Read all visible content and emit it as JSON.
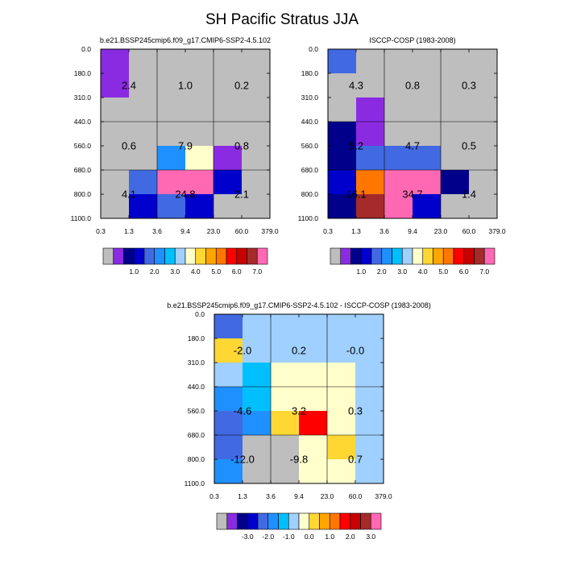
{
  "title": "SH Pacific Stratus JJA",
  "x_tick_labels": [
    "0.3",
    "1.3",
    "3.6",
    "9.4",
    "23.0",
    "60.0",
    "379.0"
  ],
  "y_tick_labels": [
    "0.0",
    "180.0",
    "310.0",
    "440.0",
    "560.0",
    "680.0",
    "800.0",
    "1100.0"
  ],
  "palette": {
    "c1": "#BEBEBE",
    "c2": "#8A2BE2",
    "c3": "#00008B",
    "c4": "#0000CD",
    "c5": "#4169E1",
    "c6": "#1E90FF",
    "c7": "#00BFFF",
    "c8": "#A0D0FF",
    "c9": "#FFFFCC",
    "c10": "#FFD733",
    "c11": "#FFA500",
    "c12": "#FF7700",
    "c13": "#FF0000",
    "c14": "#C80000",
    "c15": "#A52A2A",
    "c16": "#FF69B4"
  },
  "chart_data": [
    {
      "type": "heatmap",
      "title": "b.e21.BSSP245cmip6.f09_g17.CMIP6-SSP2-4.5.102",
      "x_bins": [
        "0.3",
        "1.3",
        "3.6",
        "9.4",
        "23.0",
        "60.0",
        "379.0"
      ],
      "y_bins": [
        "0.0",
        "180.0",
        "310.0",
        "440.0",
        "560.0",
        "680.0",
        "800.0",
        "1100.0"
      ],
      "cells": [
        [
          "c2",
          "c1",
          "c1",
          "c1",
          "c1",
          "c1"
        ],
        [
          "c2",
          "c1",
          "c1",
          "c1",
          "c1",
          "c1"
        ],
        [
          "c1",
          "c1",
          "c1",
          "c1",
          "c1",
          "c1"
        ],
        [
          "c1",
          "c1",
          "c1",
          "c1",
          "c1",
          "c1"
        ],
        [
          "c1",
          "c1",
          "c6",
          "c9",
          "c2",
          "c1"
        ],
        [
          "c1",
          "c5",
          "c16",
          "c16",
          "c4",
          "c1"
        ],
        [
          "c1",
          "c4",
          "c5",
          "c4",
          "c1",
          "c1"
        ]
      ],
      "box_values": [
        [
          "2.4",
          "1.0",
          "0.2"
        ],
        [
          "0.6",
          "7.9",
          "0.8"
        ],
        [
          "4.1",
          "24.8",
          "2.1"
        ]
      ],
      "colorbar_labels": [
        "1.0",
        "2.0",
        "3.0",
        "4.0",
        "5.0",
        "6.0",
        "7.0"
      ]
    },
    {
      "type": "heatmap",
      "title": "ISCCP-COSP (1983-2008)",
      "x_bins": [
        "0.3",
        "1.3",
        "3.6",
        "9.4",
        "23.0",
        "60.0",
        "379.0"
      ],
      "y_bins": [
        "0.0",
        "180.0",
        "310.0",
        "440.0",
        "560.0",
        "680.0",
        "800.0",
        "1100.0"
      ],
      "cells": [
        [
          "c5",
          "c1",
          "c1",
          "c1",
          "c1",
          "c1"
        ],
        [
          "c1",
          "c1",
          "c1",
          "c1",
          "c1",
          "c1"
        ],
        [
          "c1",
          "c2",
          "c1",
          "c1",
          "c1",
          "c1"
        ],
        [
          "c3",
          "c2",
          "c1",
          "c1",
          "c1",
          "c1"
        ],
        [
          "c3",
          "c5",
          "c5",
          "c5",
          "c1",
          "c1"
        ],
        [
          "c4",
          "c12",
          "c16",
          "c16",
          "c3",
          "c1"
        ],
        [
          "c3",
          "c15",
          "c16",
          "c4",
          "c1",
          "c1"
        ]
      ],
      "box_values": [
        [
          "4.3",
          "0.8",
          "0.3"
        ],
        [
          "5.2",
          "4.7",
          "0.5"
        ],
        [
          "16.1",
          "34.7",
          "1.4"
        ]
      ],
      "colorbar_labels": [
        "1.0",
        "2.0",
        "3.0",
        "4.0",
        "5.0",
        "6.0",
        "7.0"
      ]
    },
    {
      "type": "heatmap",
      "title": "b.e21.BSSP245cmip6.f09_g17.CMIP6-SSP2-4.5.102 - ISCCP-COSP (1983-2008)",
      "x_bins": [
        "0.3",
        "1.3",
        "3.6",
        "9.4",
        "23.0",
        "60.0",
        "379.0"
      ],
      "y_bins": [
        "0.0",
        "180.0",
        "310.0",
        "440.0",
        "560.0",
        "680.0",
        "800.0",
        "1100.0"
      ],
      "cells": [
        [
          "c5",
          "c8",
          "c8",
          "c8",
          "c8",
          "c8"
        ],
        [
          "c10",
          "c8",
          "c8",
          "c8",
          "c8",
          "c8"
        ],
        [
          "c8",
          "c7",
          "c9",
          "c9",
          "c9",
          "c8"
        ],
        [
          "c6",
          "c7",
          "c9",
          "c9",
          "c9",
          "c8"
        ],
        [
          "c5",
          "c6",
          "c10",
          "c13",
          "c9",
          "c8"
        ],
        [
          "c5",
          "c1",
          "c1",
          "c9",
          "c10",
          "c8"
        ],
        [
          "c6",
          "c1",
          "c1",
          "c9",
          "c9",
          "c8"
        ]
      ],
      "box_values": [
        [
          "-2.0",
          "0.2",
          "-0.0"
        ],
        [
          "-4.6",
          "3.2",
          "0.3"
        ],
        [
          "-12.0",
          "-9.8",
          "0.7"
        ]
      ],
      "colorbar_labels": [
        "-3.0",
        "-2.0",
        "-1.0",
        "0.0",
        "1.0",
        "2.0",
        "3.0"
      ]
    }
  ]
}
